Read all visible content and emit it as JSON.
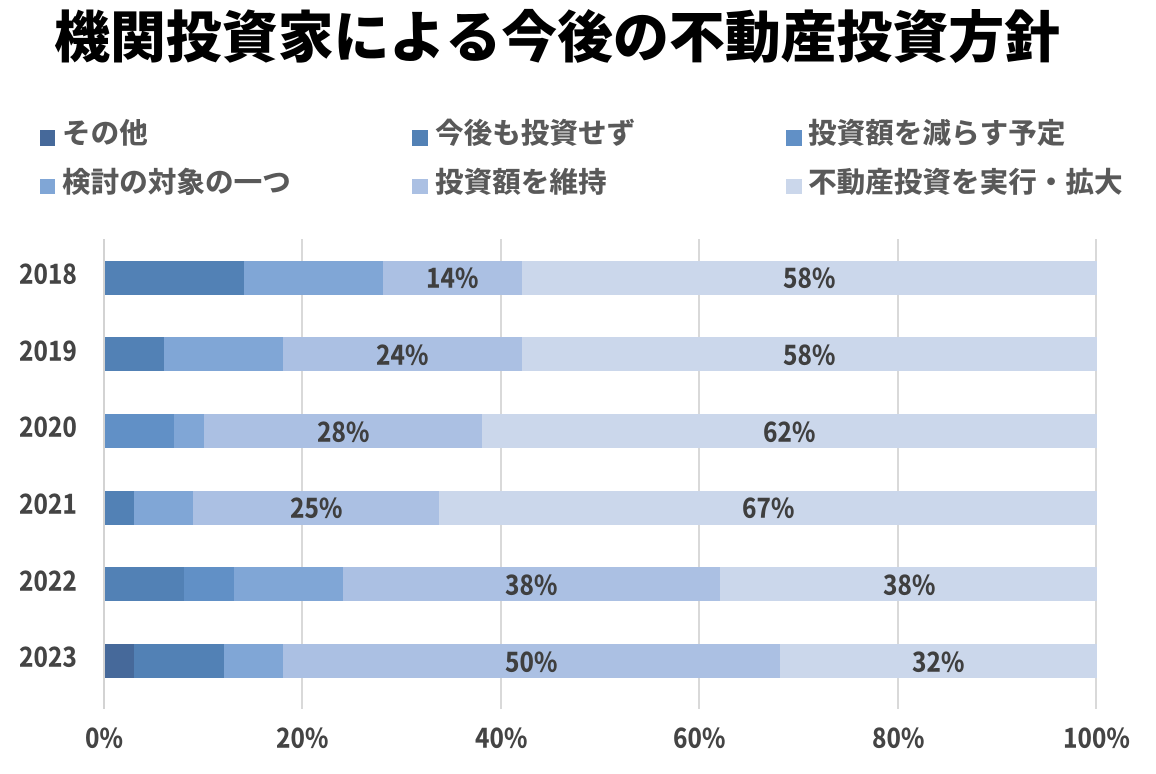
{
  "title": "機関投資家による今後の不動産投資方針",
  "legend": {
    "items": [
      {
        "label": "その他",
        "color": "#46699A"
      },
      {
        "label": "今後も投資せず",
        "color": "#5281B5"
      },
      {
        "label": "投資額を減らす予定",
        "color": "#6190C6"
      },
      {
        "label": "検討の対象の一つ",
        "color": "#80A6D6"
      },
      {
        "label": "投資額を維持",
        "color": "#ABC0E3"
      },
      {
        "label": "不動産投資を実行・拡大",
        "color": "#CBD7EB"
      }
    ]
  },
  "chart_data": {
    "type": "bar",
    "orientation": "horizontal_stacked",
    "title": "機関投資家による今後の不動産投資方針",
    "categories": [
      "2018",
      "2019",
      "2020",
      "2021",
      "2022",
      "2023"
    ],
    "series": [
      {
        "name": "その他",
        "color": "#46699A",
        "values": [
          0,
          0,
          0,
          0,
          0,
          3
        ]
      },
      {
        "name": "今後も投資せず",
        "color": "#5281B5",
        "values": [
          14,
          6,
          0,
          3,
          8,
          9
        ]
      },
      {
        "name": "投資額を減らす予定",
        "color": "#6190C6",
        "values": [
          0,
          0,
          7,
          0,
          5,
          0
        ]
      },
      {
        "name": "検討の対象の一つ",
        "color": "#80A6D6",
        "values": [
          14,
          12,
          3,
          6,
          11,
          6
        ]
      },
      {
        "name": "投資額を維持",
        "color": "#ABC0E3",
        "values": [
          14,
          24,
          28,
          25,
          38,
          50
        ]
      },
      {
        "name": "不動産投資を実行・拡大",
        "color": "#CBD7EB",
        "values": [
          58,
          58,
          62,
          67,
          38,
          32
        ]
      }
    ],
    "unit": "%",
    "xlim": [
      0,
      100
    ],
    "x_tick_labels": [
      "0%",
      "20%",
      "40%",
      "60%",
      "80%",
      "100%"
    ],
    "grid": true,
    "legend_position": "top",
    "value_labels": [
      {
        "series": "投資額を維持",
        "series_index": 4,
        "texts": [
          "14%",
          "24%",
          "28%",
          "25%",
          "38%",
          "50%"
        ]
      },
      {
        "series": "不動産投資を実行・拡大",
        "series_index": 5,
        "texts": [
          "58%",
          "58%",
          "62%",
          "67%",
          "38%",
          "32%"
        ]
      }
    ]
  },
  "colors": {
    "palette": [
      "#46699A",
      "#5281B5",
      "#6190C6",
      "#80A6D6",
      "#ABC0E3",
      "#CBD7EB"
    ],
    "gridline": "#D9D9D9",
    "axis_line": "#D3D3D3",
    "title_text": "#000000",
    "legend_text": "#595959",
    "axis_text": "#444444",
    "label_text": "#3F3F3F",
    "background": "#FFFFFF"
  }
}
